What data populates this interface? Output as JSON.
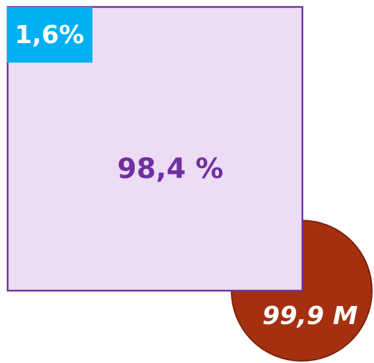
{
  "square": {
    "label": "98,4 %"
  },
  "corner": {
    "label": "1,6%"
  },
  "circle": {
    "label": "99,9 M"
  }
}
